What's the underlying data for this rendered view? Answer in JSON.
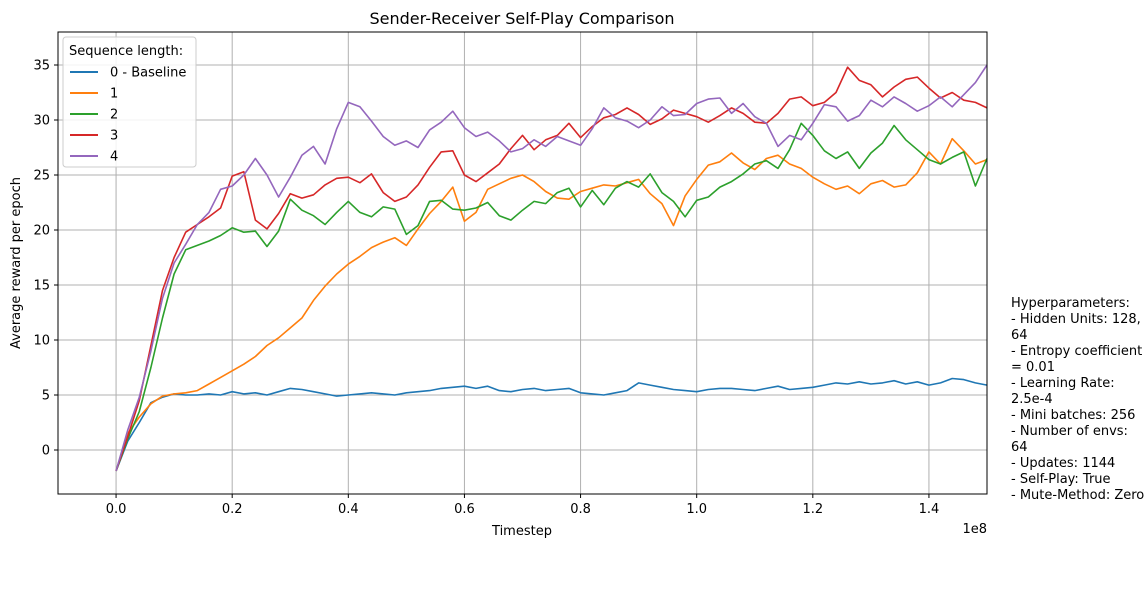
{
  "chart_data": {
    "type": "line",
    "title": "Sender-Receiver Self-Play Comparison",
    "xlabel": "Timestep",
    "ylabel": "Average reward per epoch",
    "x_offset_label": "1e8",
    "x_ticks": [
      0.0,
      0.2,
      0.4,
      0.6,
      0.8,
      1.0,
      1.2,
      1.4
    ],
    "x_tick_labels": [
      "0.0",
      "0.2",
      "0.4",
      "0.6",
      "0.8",
      "1.0",
      "1.2",
      "1.4"
    ],
    "y_ticks": [
      0,
      5,
      10,
      15,
      20,
      25,
      30,
      35
    ],
    "y_tick_labels": [
      "0",
      "5",
      "10",
      "15",
      "20",
      "25",
      "30",
      "35"
    ],
    "xlim": [
      -0.1,
      1.5
    ],
    "ylim": [
      -4,
      38
    ],
    "grid": true,
    "legend": {
      "title": "Sequence length:",
      "placement": "top-left"
    },
    "x": [
      0.0,
      0.02,
      0.04,
      0.06,
      0.08,
      0.1,
      0.12,
      0.14,
      0.16,
      0.18,
      0.2,
      0.22,
      0.24,
      0.26,
      0.28,
      0.3,
      0.32,
      0.34,
      0.36,
      0.38,
      0.4,
      0.42,
      0.44,
      0.46,
      0.48,
      0.5,
      0.52,
      0.54,
      0.56,
      0.58,
      0.6,
      0.62,
      0.64,
      0.66,
      0.68,
      0.7,
      0.72,
      0.74,
      0.76,
      0.78,
      0.8,
      0.82,
      0.84,
      0.86,
      0.88,
      0.9,
      0.92,
      0.94,
      0.96,
      0.98,
      1.0,
      1.02,
      1.04,
      1.06,
      1.08,
      1.1,
      1.12,
      1.14,
      1.16,
      1.18,
      1.2,
      1.22,
      1.24,
      1.26,
      1.28,
      1.3,
      1.32,
      1.34,
      1.36,
      1.38,
      1.4,
      1.42,
      1.44,
      1.46,
      1.48,
      1.5
    ],
    "series": [
      {
        "name": "0 - Baseline",
        "color": "#1f77b4",
        "values": [
          -1.9,
          0.8,
          2.5,
          4.3,
          4.8,
          5.1,
          5.0,
          5.0,
          5.1,
          5.0,
          5.3,
          5.1,
          5.2,
          5.0,
          5.3,
          5.6,
          5.5,
          5.3,
          5.1,
          4.9,
          5.0,
          5.1,
          5.2,
          5.1,
          5.0,
          5.2,
          5.3,
          5.4,
          5.6,
          5.7,
          5.8,
          5.6,
          5.8,
          5.4,
          5.3,
          5.5,
          5.6,
          5.4,
          5.5,
          5.6,
          5.2,
          5.1,
          5.0,
          5.2,
          5.4,
          6.1,
          5.9,
          5.7,
          5.5,
          5.4,
          5.3,
          5.5,
          5.6,
          5.6,
          5.5,
          5.4,
          5.6,
          5.8,
          5.5,
          5.6,
          5.7,
          5.9,
          6.1,
          6.0,
          6.2,
          6.0,
          6.1,
          6.3,
          6.0,
          6.2,
          5.9,
          6.1,
          6.5,
          6.4,
          6.1,
          5.9
        ]
      },
      {
        "name": "1",
        "color": "#ff7f0e",
        "values": [
          -1.9,
          1.5,
          3.0,
          4.2,
          4.9,
          5.1,
          5.2,
          5.4,
          6.0,
          6.6,
          7.2,
          7.8,
          8.5,
          9.5,
          10.2,
          11.1,
          12.0,
          13.6,
          14.9,
          16.0,
          16.9,
          17.6,
          18.4,
          18.9,
          19.3,
          18.6,
          20.1,
          21.5,
          22.6,
          23.9,
          20.8,
          21.6,
          23.7,
          24.2,
          24.7,
          25.0,
          24.4,
          23.5,
          22.9,
          22.8,
          23.5,
          23.8,
          24.1,
          24.0,
          24.3,
          24.6,
          23.3,
          22.4,
          20.4,
          23.1,
          24.6,
          25.9,
          26.2,
          27.0,
          26.1,
          25.5,
          26.5,
          26.8,
          26.0,
          25.6,
          24.8,
          24.2,
          23.7,
          24.0,
          23.3,
          24.2,
          24.5,
          23.9,
          24.1,
          25.2,
          27.1,
          26.0,
          28.3,
          27.2,
          26.0,
          26.4
        ]
      },
      {
        "name": "2",
        "color": "#2ca02c",
        "values": [
          -1.9,
          1.0,
          3.5,
          7.5,
          12.0,
          16.0,
          18.2,
          18.6,
          19.0,
          19.5,
          20.2,
          19.8,
          19.9,
          18.5,
          19.9,
          22.8,
          21.8,
          21.3,
          20.5,
          21.6,
          22.6,
          21.6,
          21.2,
          22.1,
          21.9,
          19.6,
          20.4,
          22.6,
          22.7,
          21.9,
          21.8,
          22.0,
          22.5,
          21.3,
          20.9,
          21.8,
          22.6,
          22.4,
          23.4,
          23.8,
          22.1,
          23.6,
          22.3,
          23.8,
          24.4,
          23.9,
          25.1,
          23.4,
          22.6,
          21.2,
          22.7,
          23.0,
          23.9,
          24.4,
          25.1,
          26.0,
          26.3,
          25.6,
          27.3,
          29.7,
          28.6,
          27.2,
          26.5,
          27.1,
          25.6,
          27.0,
          27.9,
          29.5,
          28.2,
          27.3,
          26.4,
          26.0,
          26.6,
          27.1,
          24.0,
          26.5
        ]
      },
      {
        "name": "3",
        "color": "#d62728",
        "values": [
          -1.9,
          1.2,
          4.5,
          9.5,
          14.5,
          17.5,
          19.8,
          20.5,
          21.2,
          22.0,
          24.9,
          25.3,
          20.9,
          20.1,
          21.5,
          23.3,
          22.9,
          23.2,
          24.1,
          24.7,
          24.8,
          24.3,
          25.1,
          23.4,
          22.6,
          23.0,
          24.1,
          25.7,
          27.1,
          27.2,
          25.0,
          24.4,
          25.2,
          26.0,
          27.4,
          28.6,
          27.3,
          28.2,
          28.6,
          29.7,
          28.4,
          29.4,
          30.2,
          30.5,
          31.1,
          30.5,
          29.6,
          30.1,
          30.9,
          30.6,
          30.3,
          29.8,
          30.4,
          31.1,
          30.6,
          29.8,
          29.7,
          30.6,
          31.9,
          32.1,
          31.3,
          31.6,
          32.5,
          34.8,
          33.6,
          33.2,
          32.1,
          33.0,
          33.7,
          33.9,
          32.9,
          32.0,
          32.5,
          31.8,
          31.6,
          31.1
        ]
      },
      {
        "name": "4",
        "color": "#9467bd",
        "values": [
          -1.9,
          1.8,
          4.8,
          9.0,
          13.8,
          17.0,
          18.7,
          20.5,
          21.6,
          23.7,
          24.0,
          25.0,
          26.5,
          25.0,
          23.0,
          24.8,
          26.8,
          27.6,
          26.0,
          29.2,
          31.6,
          31.2,
          29.9,
          28.5,
          27.7,
          28.1,
          27.5,
          29.1,
          29.8,
          30.8,
          29.3,
          28.5,
          28.9,
          28.1,
          27.1,
          27.4,
          28.2,
          27.6,
          28.5,
          28.1,
          27.7,
          29.2,
          31.1,
          30.2,
          29.9,
          29.3,
          30.0,
          31.2,
          30.4,
          30.5,
          31.5,
          31.9,
          32.0,
          30.6,
          31.5,
          30.3,
          29.7,
          27.6,
          28.6,
          28.2,
          29.7,
          31.4,
          31.2,
          29.9,
          30.4,
          31.8,
          31.2,
          32.1,
          31.5,
          30.8,
          31.3,
          32.1,
          31.2,
          32.3,
          33.4,
          35.0
        ]
      }
    ]
  },
  "hyperparameters": {
    "heading": "Hyperparameters:",
    "lines": [
      "- Hidden Units: 128, 64",
      "- Entropy coefficient = 0.01",
      "- Learning Rate: 2.5e-4",
      "- Mini batches: 256",
      "- Number of envs: 64",
      "- Updates: 1144",
      "- Self-Play: True",
      "- Mute-Method: Zero"
    ]
  }
}
